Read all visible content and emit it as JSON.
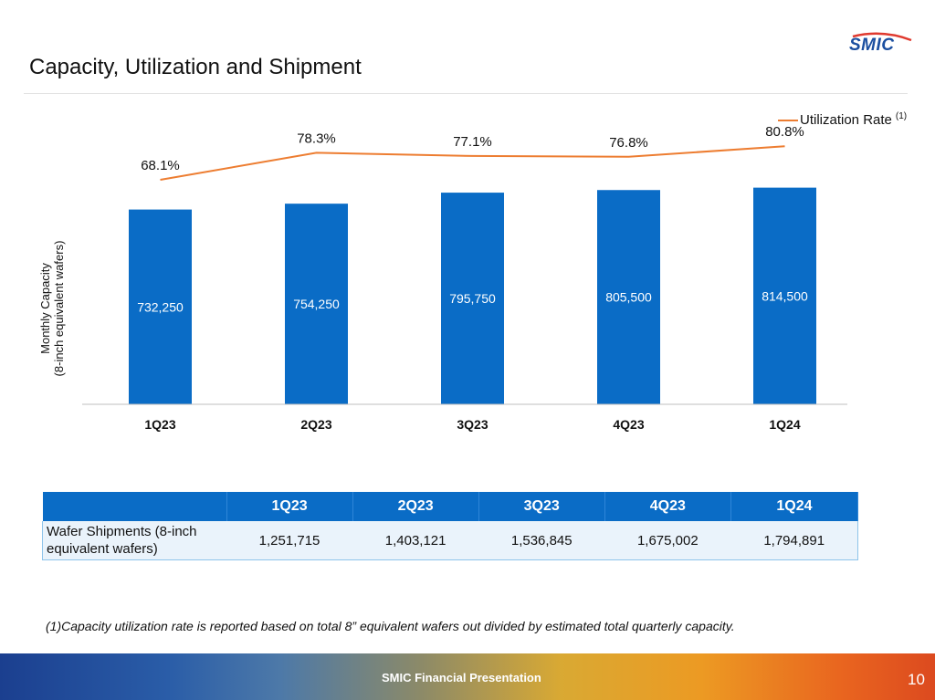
{
  "slide": {
    "title": "Capacity, Utilization and Shipment",
    "logo_text": "SMIC",
    "footer": "SMIC Financial Presentation",
    "page_number": "10",
    "footnote": "(1)Capacity utilization rate is reported based on total 8” equivalent wafers out divided by estimated total quarterly capacity."
  },
  "chart_data": {
    "type": "bar",
    "categories": [
      "1Q23",
      "2Q23",
      "3Q23",
      "4Q23",
      "1Q24"
    ],
    "series": [
      {
        "type": "bar",
        "values": [
          732250,
          754250,
          795750,
          805500,
          814500
        ],
        "labels": [
          "732,250",
          "754,250",
          "795,750",
          "805,500",
          "814,500"
        ],
        "color": "#0a6cc6"
      },
      {
        "name": "Utilization Rate",
        "type": "line",
        "values": [
          68.1,
          78.3,
          77.1,
          76.8,
          80.8
        ],
        "labels": [
          "68.1%",
          "78.3%",
          "77.1%",
          "76.8%",
          "80.8%"
        ],
        "color": "#ed7d31"
      }
    ],
    "ylabel_line1": "Monthly Capacity",
    "ylabel_line2": "(8-inch equivalent wafers)",
    "legend_label": "Utilization Rate",
    "legend_note": "(1)",
    "legend_position": "top-right",
    "grid": false
  },
  "table": {
    "headers": [
      "1Q23",
      "2Q23",
      "3Q23",
      "4Q23",
      "1Q24"
    ],
    "row_label_line1": "Wafer Shipments (8-inch",
    "row_label_line2": "equivalent wafers)",
    "values": [
      "1,251,715",
      "1,403,121",
      "1,536,845",
      "1,675,002",
      "1,794,891"
    ]
  },
  "colors": {
    "bar": "#0a6cc6",
    "line": "#ed7d31",
    "table_header": "#0a6cc6",
    "logo_blue": "#1b4fa0",
    "logo_red": "#e03a2f"
  }
}
